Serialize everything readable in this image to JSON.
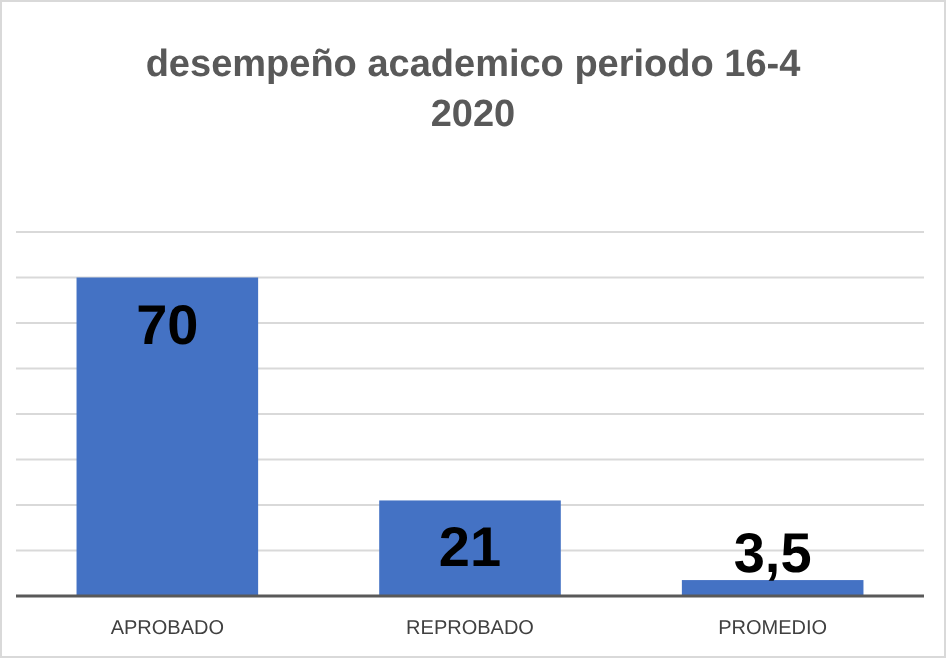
{
  "chart_data": {
    "type": "bar",
    "title": "desempeño academico periodo 16-4 2020",
    "categories": [
      "APROBADO",
      "REPROBADO",
      "PROMEDIO"
    ],
    "values": [
      70,
      21,
      3.5
    ],
    "color": "#4472c4",
    "value_labels": [
      "70",
      "21",
      "3,5"
    ],
    "ylim": [
      0,
      80
    ],
    "yticks": [
      {
        "value": 0,
        "label": null
      },
      {
        "value": 10,
        "label": null
      },
      {
        "value": 20,
        "label": null
      },
      {
        "value": 30,
        "label": null
      },
      {
        "value": 40,
        "label": null
      },
      {
        "value": 50,
        "label": null
      },
      {
        "value": 60,
        "label": null
      },
      {
        "value": 70,
        "label": null
      },
      {
        "value": 80,
        "label": null
      }
    ],
    "grid": "y",
    "tick_labels": "x"
  }
}
